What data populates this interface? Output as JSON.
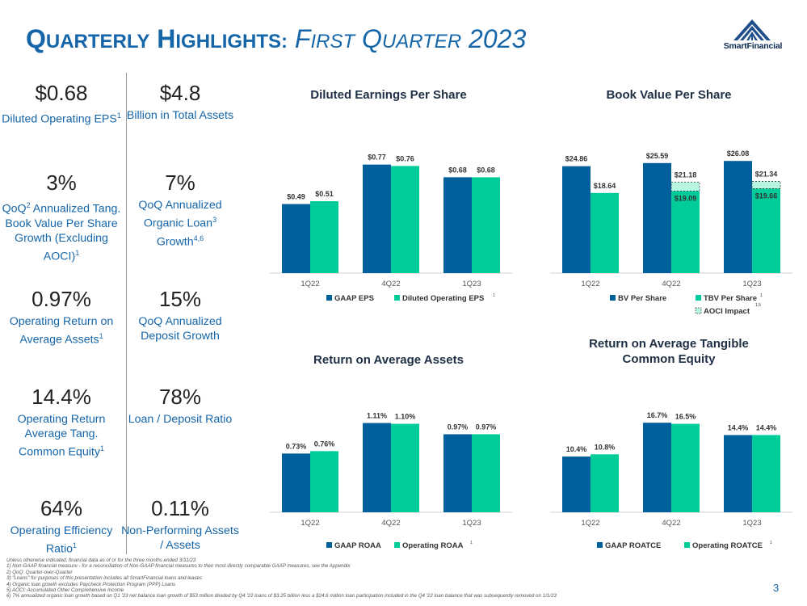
{
  "header": {
    "title_q": "Q",
    "title_uarterly": "UARTERLY",
    "title_h": "H",
    "title_ighlights": "IGHLIGHTS:",
    "sub_f": "F",
    "sub_irst": "IRST",
    "sub_q": "Q",
    "sub_uarter": "UARTER",
    "sub_year": "2023"
  },
  "logo": {
    "name": "SmartFinancial"
  },
  "colors": {
    "navy": "#00609b",
    "teal": "#00cc99",
    "title_blue": "#1565a9"
  },
  "stats_left": [
    {
      "value": "$0.68",
      "label": "Diluted Operating EPS",
      "sup": "1"
    },
    {
      "value": "3%",
      "label_a": "QoQ",
      "sup_a": "2",
      "label_b": " Annualized Tang. Book Value Per Share Growth (Excluding AOCI)",
      "sup_b": "1"
    },
    {
      "value": "0.97%",
      "label": "Operating Return on Average Assets",
      "sup": "1"
    },
    {
      "value": "14.4%",
      "label": "Operating Return Average Tang. Common Equity",
      "sup": "1"
    },
    {
      "value": "64%",
      "label": "Operating Efficiency Ratio",
      "sup": "1"
    }
  ],
  "stats_right": [
    {
      "value": "$4.8",
      "label": "Billion in Total Assets"
    },
    {
      "value": "7%",
      "label": "QoQ Annualized Organic Loan",
      "sup": "3",
      "label2": "Growth",
      "sup2": "4,6"
    },
    {
      "value": "15%",
      "label": "QoQ Annualized Deposit Growth"
    },
    {
      "value": "78%",
      "label": "Loan / Deposit Ratio"
    },
    {
      "value": "0.11%",
      "label": "Non-Performing Assets / Assets"
    }
  ],
  "chart_data": [
    {
      "id": "eps",
      "type": "bar",
      "title": "Diluted Earnings Per Share",
      "categories": [
        "1Q22",
        "4Q22",
        "1Q23"
      ],
      "ylim": [
        0,
        0.9
      ],
      "series": [
        {
          "name": "GAAP EPS",
          "color": "#00609b",
          "values": [
            0.49,
            0.77,
            0.68
          ],
          "labels": [
            "$0.49",
            "$0.77",
            "$0.68"
          ]
        },
        {
          "name": "Diluted Operating EPS",
          "sup": "1",
          "color": "#00cc99",
          "values": [
            0.51,
            0.76,
            0.68
          ],
          "labels": [
            "$0.51",
            "$0.76",
            "$0.68"
          ]
        }
      ]
    },
    {
      "id": "bv",
      "type": "bar",
      "title": "Book Value Per Share",
      "categories": [
        "1Q22",
        "4Q22",
        "1Q23"
      ],
      "ylim": [
        0,
        29.5
      ],
      "series": [
        {
          "name": "BV Per Share",
          "color": "#00609b",
          "values": [
            24.86,
            25.59,
            26.08
          ],
          "labels": [
            "$24.86",
            "$25.59",
            "$26.08"
          ]
        },
        {
          "name": "TBV Per Share",
          "sup": "1",
          "color": "#00cc99",
          "values": [
            18.64,
            19.09,
            19.66
          ],
          "labels": [
            "$18.64",
            "$19.09",
            "$19.66"
          ]
        }
      ],
      "aoci": {
        "name": "AOCI Impact",
        "sup": "1,5",
        "color": "#b8f5e2",
        "totals": [
          null,
          21.18,
          21.34
        ],
        "labels": [
          "",
          "$21.18",
          "$21.34"
        ]
      }
    },
    {
      "id": "roaa",
      "type": "bar",
      "title": "Return on Average Assets",
      "categories": [
        "1Q22",
        "4Q22",
        "1Q23"
      ],
      "ylim": [
        0,
        1.3
      ],
      "series": [
        {
          "name": "GAAP ROAA",
          "color": "#00609b",
          "values": [
            0.73,
            1.11,
            0.97
          ],
          "labels": [
            "0.73%",
            "1.11%",
            "0.97%"
          ]
        },
        {
          "name": "Operating ROAA",
          "sup": "1",
          "color": "#00cc99",
          "values": [
            0.76,
            1.1,
            0.97
          ],
          "labels": [
            "0.76%",
            "1.10%",
            "0.97%"
          ]
        }
      ]
    },
    {
      "id": "roatce",
      "type": "bar",
      "title": "Return on Average Tangible Common Equity",
      "categories": [
        "1Q22",
        "4Q22",
        "1Q23"
      ],
      "ylim": [
        0,
        19.5
      ],
      "series": [
        {
          "name": "GAAP ROATCE",
          "color": "#00609b",
          "values": [
            10.4,
            16.7,
            14.4
          ],
          "labels": [
            "10.4%",
            "16.7%",
            "14.4%"
          ]
        },
        {
          "name": "Operating ROATCE",
          "sup": "1",
          "color": "#00cc99",
          "values": [
            10.8,
            16.5,
            14.4
          ],
          "labels": [
            "10.8%",
            "16.5%",
            "14.4%"
          ]
        }
      ]
    }
  ],
  "footnotes": [
    "Unless otherwise indicated, financial data as of or for the three months ended 3/31/23",
    "1)   Non-GAAP financial measure - for a reconciliation of Non-GAAP financial measures to their most directly comparable GAAP measures, see the Appendix",
    "2)   QoQ: Quarter-over-Quarter",
    "3)   \"Loans\" for purposes of this presentation includes all SmartFinancial loans and leases",
    "4)   Organic loan growth excludes Paycheck Protection Program (PPP) Loans",
    "5)   AOCI: Accumulated Other Comprehensive Income",
    "6)   7% annualized organic loan growth based on Q1 '23 net balance loan growth of $53 million divided by Q4 '22 loans of $3.25 billion less a $24.6 million loan participation included in the Q4 '22 loan balance that was subsequently removed on 1/1/23"
  ],
  "page_number": "3"
}
